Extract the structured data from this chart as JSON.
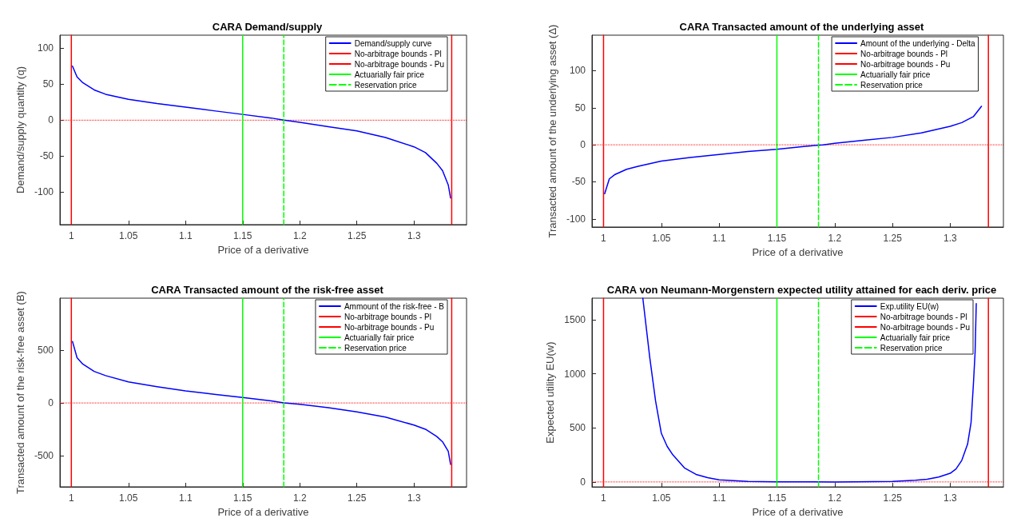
{
  "chart_data": [
    {
      "type": "line",
      "title": "CARA Demand/supply",
      "xlabel": "Price of a derivative",
      "ylabel": "Demand/supply quantity (q)",
      "xlim": [
        0.99,
        1.346
      ],
      "xticks": [
        1,
        1.05,
        1.1,
        1.15,
        1.2,
        1.25,
        1.3
      ],
      "ylim": [
        -145,
        118
      ],
      "yticks": [
        -100,
        -50,
        0,
        50,
        100
      ],
      "grid": false,
      "legend": "top right",
      "marker": "none",
      "line_style": "solid",
      "series": [
        {
          "name": "Demand/supply curve",
          "color": "#0000ff",
          "x": [
            1.001,
            1.005,
            1.01,
            1.02,
            1.03,
            1.05,
            1.075,
            1.1,
            1.125,
            1.15,
            1.175,
            1.186,
            1.2,
            1.225,
            1.25,
            1.275,
            1.3,
            1.31,
            1.32,
            1.325,
            1.33,
            1.332
          ],
          "values": [
            75,
            60,
            52,
            42,
            36,
            29,
            23,
            18,
            13,
            8,
            3,
            0,
            -3,
            -9,
            -15,
            -24,
            -37,
            -45,
            -60,
            -70,
            -90,
            -108
          ]
        },
        {
          "name": "No-arbitrage bounds - Pl",
          "color": "#ff0000",
          "x": [
            1,
            1
          ],
          "values": [
            -145,
            118
          ]
        },
        {
          "name": "No-arbitrage bounds - Pu",
          "color": "#ff0000",
          "x": [
            1.333,
            1.333
          ],
          "values": [
            -145,
            118
          ]
        },
        {
          "name": "Actuarially fair price",
          "color": "#00ff00",
          "x": [
            1.15,
            1.15
          ],
          "values": [
            -145,
            118
          ]
        },
        {
          "name": "Reservation price",
          "color": "#00ff00",
          "line_style": "dashed",
          "x": [
            1.186,
            1.186
          ],
          "values": [
            -145,
            118
          ]
        }
      ],
      "ref_lines": [
        {
          "axis": "y",
          "value": 0,
          "color": "#ff0000",
          "line_style": "dotted"
        }
      ]
    },
    {
      "type": "line",
      "title": "CARA Transacted amount of the underlying asset",
      "xlabel": "Price of a derivative",
      "ylabel": "Transacted amount of the underlying asset (Δ)",
      "xlim": [
        0.99,
        1.346
      ],
      "xticks": [
        1,
        1.05,
        1.1,
        1.15,
        1.2,
        1.25,
        1.3
      ],
      "ylim": [
        -111,
        148
      ],
      "yticks": [
        -100,
        -50,
        0,
        50,
        100
      ],
      "grid": false,
      "legend": "top right",
      "marker": "none",
      "line_style": "solid",
      "series": [
        {
          "name": "Amount of the underlying - Delta",
          "color": "#0000ff",
          "x": [
            1.001,
            1.005,
            1.01,
            1.02,
            1.03,
            1.05,
            1.075,
            1.1,
            1.125,
            1.15,
            1.175,
            1.19,
            1.2,
            1.225,
            1.25,
            1.275,
            1.3,
            1.31,
            1.32,
            1.327
          ],
          "values": [
            -66,
            -46,
            -40,
            -33,
            -29,
            -22,
            -17,
            -13,
            -9,
            -6,
            -2,
            0,
            2,
            6,
            10,
            16,
            25,
            30,
            38,
            52
          ]
        },
        {
          "name": "No-arbitrage bounds - Pl",
          "color": "#ff0000",
          "x": [
            1,
            1
          ],
          "values": [
            -111,
            148
          ]
        },
        {
          "name": "No-arbitrage bounds - Pu",
          "color": "#ff0000",
          "x": [
            1.333,
            1.333
          ],
          "values": [
            -111,
            148
          ]
        },
        {
          "name": "Actuarially fair price",
          "color": "#00ff00",
          "x": [
            1.15,
            1.15
          ],
          "values": [
            -111,
            148
          ]
        },
        {
          "name": "Reservation price",
          "color": "#00ff00",
          "line_style": "dashed",
          "x": [
            1.186,
            1.186
          ],
          "values": [
            -111,
            148
          ]
        }
      ],
      "ref_lines": [
        {
          "axis": "y",
          "value": 0,
          "color": "#ff0000",
          "line_style": "dotted"
        }
      ]
    },
    {
      "type": "line",
      "title": "CARA Transacted amount of the risk-free asset",
      "xlabel": "Price of a derivative",
      "ylabel": "Transacted amount of the risk-free asset (B)",
      "xlim": [
        0.99,
        1.346
      ],
      "xticks": [
        1,
        1.05,
        1.1,
        1.15,
        1.2,
        1.25,
        1.3
      ],
      "ylim": [
        -798,
        997
      ],
      "yticks": [
        -500,
        0,
        500
      ],
      "grid": false,
      "legend": "top right",
      "marker": "none",
      "line_style": "solid",
      "series": [
        {
          "name": "Ammount of the risk-free - B",
          "color": "#0000ff",
          "x": [
            1.001,
            1.005,
            1.01,
            1.02,
            1.03,
            1.05,
            1.075,
            1.1,
            1.125,
            1.15,
            1.175,
            1.186,
            1.2,
            1.225,
            1.25,
            1.275,
            1.3,
            1.31,
            1.32,
            1.325,
            1.33,
            1.332
          ],
          "values": [
            585,
            430,
            370,
            300,
            260,
            200,
            155,
            115,
            82,
            52,
            20,
            0,
            -12,
            -45,
            -85,
            -135,
            -210,
            -250,
            -320,
            -370,
            -460,
            -585
          ]
        },
        {
          "name": "No-arbitrage bounds - Pl",
          "color": "#ff0000",
          "x": [
            1,
            1
          ],
          "values": [
            -798,
            997
          ]
        },
        {
          "name": "No-arbitrage bounds - Pu",
          "color": "#ff0000",
          "x": [
            1.333,
            1.333
          ],
          "values": [
            -798,
            997
          ]
        },
        {
          "name": "Actuarially fair price",
          "color": "#00ff00",
          "x": [
            1.15,
            1.15
          ],
          "values": [
            -798,
            997
          ]
        },
        {
          "name": "Reservation price",
          "color": "#00ff00",
          "line_style": "dashed",
          "x": [
            1.186,
            1.186
          ],
          "values": [
            -798,
            997
          ]
        }
      ],
      "ref_lines": [
        {
          "axis": "y",
          "value": 0,
          "color": "#ff0000",
          "line_style": "dotted"
        }
      ]
    },
    {
      "type": "line",
      "title": "CARA von Neumann-Morgenstern expected utility attained for each deriv. price",
      "xlabel": "Price of a derivative",
      "ylabel": "Expected utility EU(w)",
      "xlim": [
        0.99,
        1.346
      ],
      "xticks": [
        1,
        1.05,
        1.1,
        1.15,
        1.2,
        1.25,
        1.3
      ],
      "ylim": [
        -46,
        1700
      ],
      "yticks": [
        0,
        500,
        1000,
        1500
      ],
      "grid": false,
      "legend": "top right",
      "marker": "none",
      "line_style": "solid",
      "series": [
        {
          "name": "Exp.utility EU(w)",
          "color": "#0000ff",
          "x": [
            1.034,
            1.04,
            1.045,
            1.05,
            1.055,
            1.06,
            1.07,
            1.08,
            1.09,
            1.1,
            1.125,
            1.15,
            1.2,
            1.25,
            1.27,
            1.28,
            1.29,
            1.3,
            1.305,
            1.31,
            1.315,
            1.318,
            1.32,
            1.3215,
            1.3225
          ],
          "values": [
            1700,
            1150,
            750,
            450,
            330,
            250,
            130,
            70,
            40,
            20,
            5,
            1,
            0,
            5,
            15,
            25,
            45,
            80,
            120,
            200,
            350,
            550,
            900,
            1200,
            1650
          ]
        },
        {
          "name": "No-arbitrage bounds - Pl",
          "color": "#ff0000",
          "x": [
            1,
            1
          ],
          "values": [
            -46,
            1700
          ]
        },
        {
          "name": "No-arbitrage bounds - Pu",
          "color": "#ff0000",
          "x": [
            1.333,
            1.333
          ],
          "values": [
            -46,
            1700
          ]
        },
        {
          "name": "Actuarially fair price",
          "color": "#00ff00",
          "x": [
            1.15,
            1.15
          ],
          "values": [
            -46,
            1700
          ]
        },
        {
          "name": "Reservation price",
          "color": "#00ff00",
          "line_style": "dashed",
          "x": [
            1.186,
            1.186
          ],
          "values": [
            -46,
            1700
          ]
        }
      ],
      "ref_lines": [
        {
          "axis": "y",
          "value": 0,
          "color": "#ff0000",
          "line_style": "dotted"
        }
      ]
    }
  ]
}
